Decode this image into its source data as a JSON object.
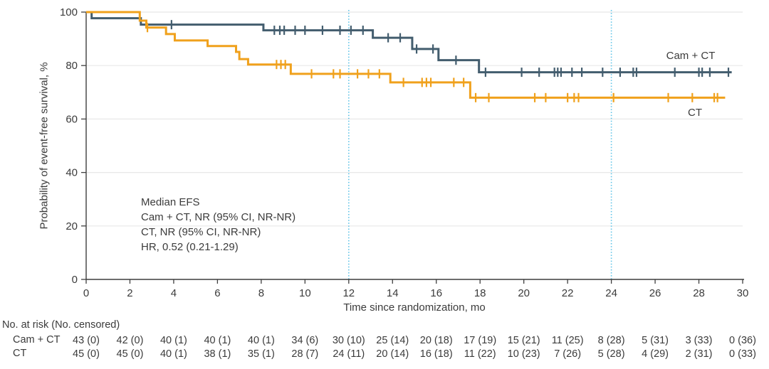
{
  "figure": {
    "y_axis_title": "Probability of event-free survival, %",
    "x_axis_title": "Time since randomization, mo",
    "legend": {
      "camct": "Cam + CT",
      "ct": "CT"
    },
    "annotation": {
      "line1": "Median EFS",
      "line2": "Cam + CT, NR (95% CI, NR-NR)",
      "line3": "CT, NR (95% CI, NR-NR)",
      "line4": "HR, 0.52 (0.21-1.29)"
    }
  },
  "colors": {
    "camct": "#435d6e",
    "ct": "#f0a11c",
    "reference_line": "#5bc2e7",
    "grid": "#e8e8e8",
    "axis": "#3f3f3f",
    "text": "#3b3b3b"
  },
  "chart_data": {
    "type": "line",
    "subtype": "kaplan-meier-step",
    "title": "",
    "xlabel": "Time since randomization, mo",
    "ylabel": "Probability of event-free survival, %",
    "xlim": [
      0,
      30
    ],
    "ylim": [
      0,
      100
    ],
    "x_ticks": [
      0,
      2,
      4,
      6,
      8,
      10,
      12,
      14,
      16,
      18,
      20,
      22,
      24,
      26,
      28,
      30
    ],
    "y_ticks": [
      0,
      20,
      40,
      60,
      80,
      100
    ],
    "grid": "horizontal",
    "legend_position": "end-of-line labels",
    "reference_lines_x": [
      12,
      24
    ],
    "series": [
      {
        "name": "Cam + CT",
        "color_key": "camct",
        "steps": [
          [
            0,
            100
          ],
          [
            0.25,
            97.7
          ],
          [
            2.5,
            95.3
          ],
          [
            8.1,
            93.2
          ],
          [
            13.1,
            90.4
          ],
          [
            14.9,
            86.2
          ],
          [
            16.1,
            82.0
          ],
          [
            17.95,
            77.5
          ]
        ],
        "end_x": 29.5,
        "censors": [
          [
            3.9,
            95.3
          ],
          [
            8.6,
            93.2
          ],
          [
            8.85,
            93.2
          ],
          [
            9.05,
            93.2
          ],
          [
            9.55,
            93.2
          ],
          [
            10.0,
            93.2
          ],
          [
            10.8,
            93.2
          ],
          [
            11.6,
            93.2
          ],
          [
            12.1,
            93.2
          ],
          [
            12.65,
            93.2
          ],
          [
            13.8,
            90.4
          ],
          [
            14.35,
            90.4
          ],
          [
            15.1,
            86.2
          ],
          [
            15.85,
            86.2
          ],
          [
            16.9,
            82.0
          ],
          [
            18.25,
            77.5
          ],
          [
            19.9,
            77.5
          ],
          [
            20.7,
            77.5
          ],
          [
            21.4,
            77.5
          ],
          [
            21.55,
            77.5
          ],
          [
            21.7,
            77.5
          ],
          [
            22.2,
            77.5
          ],
          [
            22.65,
            77.5
          ],
          [
            23.6,
            77.5
          ],
          [
            24.4,
            77.5
          ],
          [
            25.0,
            77.5
          ],
          [
            25.15,
            77.5
          ],
          [
            26.9,
            77.5
          ],
          [
            28.0,
            77.5
          ],
          [
            28.15,
            77.5
          ],
          [
            28.5,
            77.5
          ],
          [
            29.35,
            77.5
          ]
        ]
      },
      {
        "name": "CT",
        "color_key": "ct",
        "steps": [
          [
            0,
            100
          ],
          [
            2.45,
            96.8
          ],
          [
            2.75,
            94.2
          ],
          [
            3.65,
            91.8
          ],
          [
            4.05,
            89.4
          ],
          [
            5.55,
            87.3
          ],
          [
            6.85,
            85.1
          ],
          [
            7.0,
            82.4
          ],
          [
            7.4,
            80.4
          ],
          [
            9.35,
            76.9
          ],
          [
            13.9,
            73.7
          ],
          [
            17.55,
            68.0
          ]
        ],
        "end_x": 29.2,
        "censors": [
          [
            2.8,
            94.2
          ],
          [
            8.7,
            80.4
          ],
          [
            8.9,
            80.4
          ],
          [
            9.1,
            80.4
          ],
          [
            10.3,
            76.9
          ],
          [
            11.3,
            76.9
          ],
          [
            11.6,
            76.9
          ],
          [
            12.4,
            76.9
          ],
          [
            12.9,
            76.9
          ],
          [
            13.4,
            76.9
          ],
          [
            14.5,
            73.7
          ],
          [
            15.35,
            73.7
          ],
          [
            15.55,
            73.7
          ],
          [
            15.75,
            73.7
          ],
          [
            16.8,
            73.7
          ],
          [
            17.25,
            73.7
          ],
          [
            17.8,
            68.0
          ],
          [
            18.4,
            68.0
          ],
          [
            20.5,
            68.0
          ],
          [
            21.0,
            68.0
          ],
          [
            22.0,
            68.0
          ],
          [
            22.3,
            68.0
          ],
          [
            22.5,
            68.0
          ],
          [
            24.1,
            68.0
          ],
          [
            26.6,
            68.0
          ],
          [
            27.7,
            68.0
          ],
          [
            28.7,
            68.0
          ],
          [
            28.85,
            68.0
          ]
        ]
      }
    ],
    "annotation_lines": [
      "Median EFS",
      "Cam + CT, NR (95% CI, NR-NR)",
      "CT, NR (95% CI, NR-NR)",
      "HR, 0.52 (0.21-1.29)"
    ]
  },
  "risk_table": {
    "header": "No. at risk (No. censored)",
    "columns_months": [
      0,
      2,
      4,
      6,
      8,
      10,
      12,
      14,
      16,
      18,
      20,
      22,
      24,
      26,
      28,
      30
    ],
    "rows": [
      {
        "label": "Cam + CT",
        "values": [
          "43 (0)",
          "42 (0)",
          "40 (1)",
          "40 (1)",
          "40 (1)",
          "34 (6)",
          "30 (10)",
          "25 (14)",
          "20 (18)",
          "17 (19)",
          "15 (21)",
          "11 (25)",
          "8 (28)",
          "5 (31)",
          "3 (33)",
          "0 (36)"
        ]
      },
      {
        "label": "CT",
        "values": [
          "45 (0)",
          "45 (0)",
          "40 (1)",
          "38 (1)",
          "35 (1)",
          "28 (7)",
          "24 (11)",
          "20 (14)",
          "16 (18)",
          "11 (22)",
          "10 (23)",
          "7 (26)",
          "5 (28)",
          "4 (29)",
          "2 (31)",
          "0 (33)"
        ]
      }
    ]
  }
}
